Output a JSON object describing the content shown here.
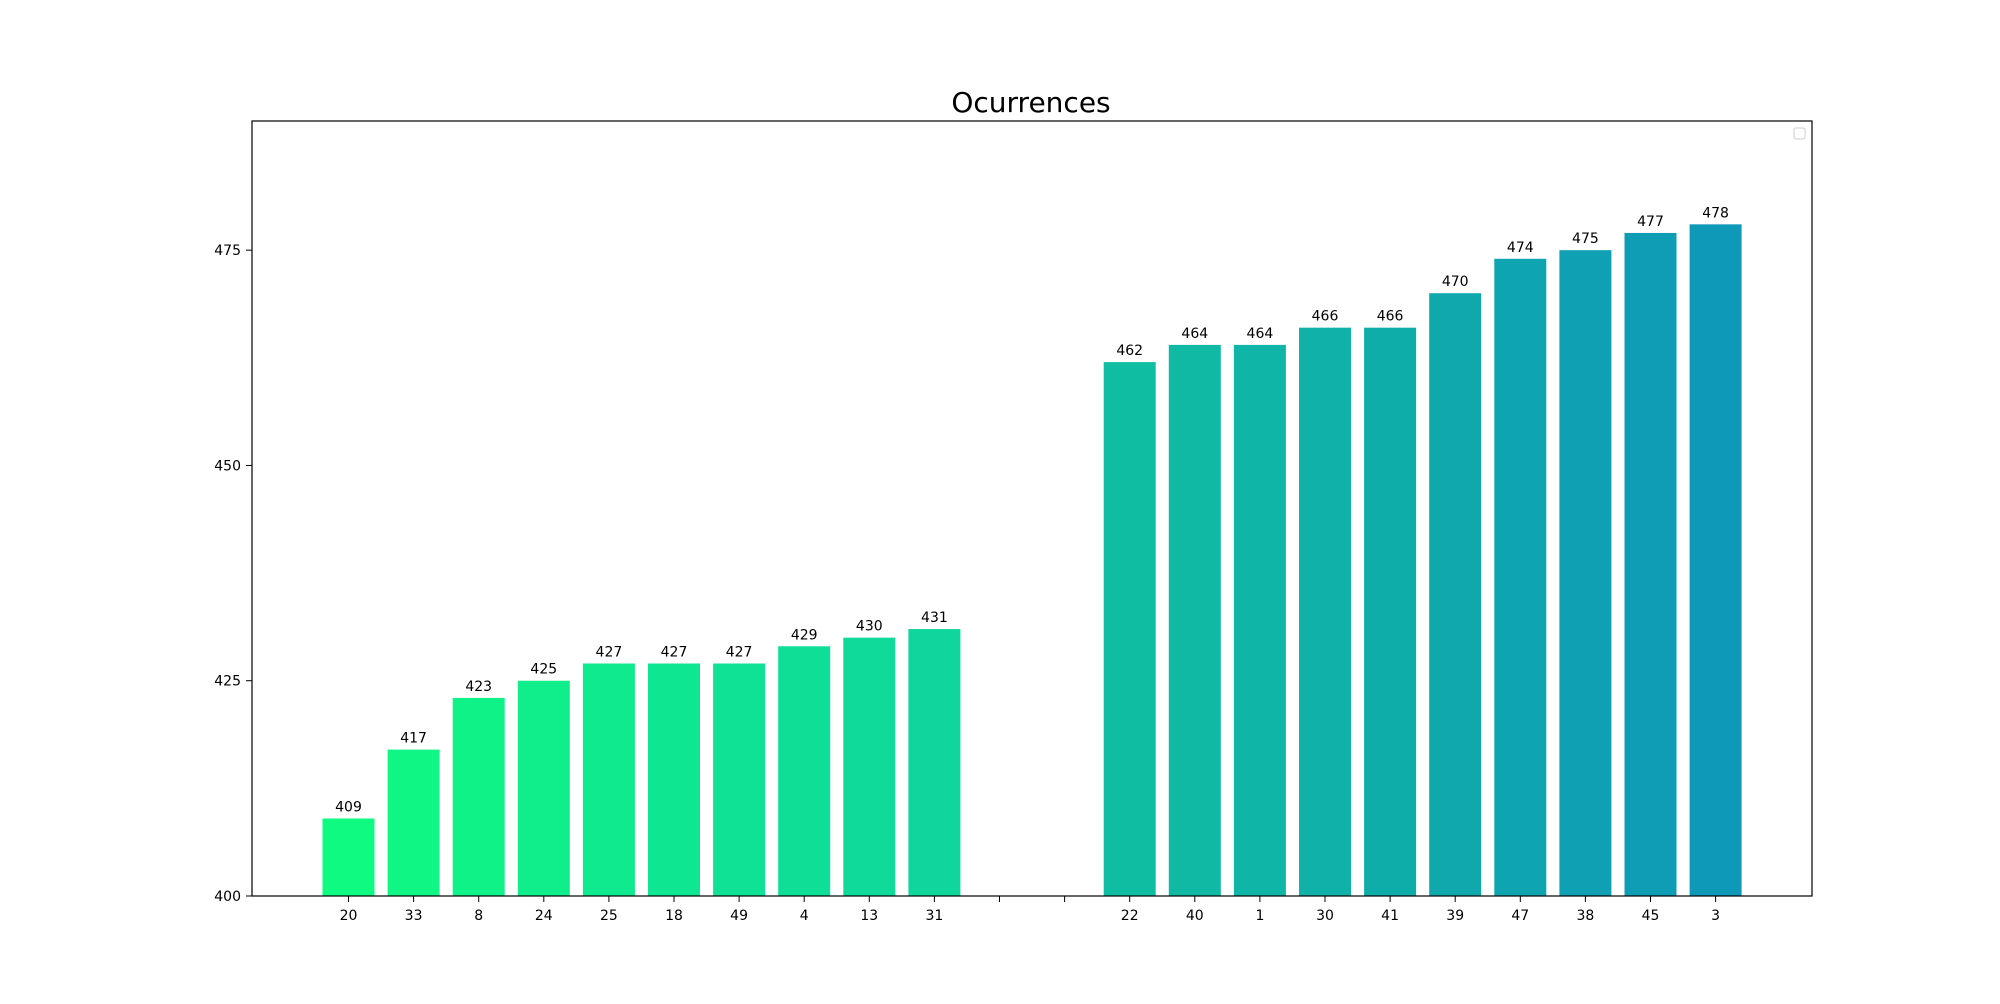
{
  "chart_data": {
    "type": "bar",
    "title": "Ocurrences",
    "xlabel": "",
    "ylabel": "",
    "ylim": [
      400,
      490
    ],
    "yticks": [
      400,
      425,
      450,
      475
    ],
    "grid": false,
    "legend": "top-right",
    "bars": [
      {
        "label": "20",
        "value": 409,
        "color": "#0ffa81"
      },
      {
        "label": "33",
        "value": 417,
        "color": "#0ff685"
      },
      {
        "label": "8",
        "value": 423,
        "color": "#0ff288"
      },
      {
        "label": "24",
        "value": 425,
        "color": "#0fee8b"
      },
      {
        "label": "25",
        "value": 427,
        "color": "#0fea8e"
      },
      {
        "label": "18",
        "value": 427,
        "color": "#0fe691"
      },
      {
        "label": "49",
        "value": 427,
        "color": "#0fe294"
      },
      {
        "label": "4",
        "value": 429,
        "color": "#0fde97"
      },
      {
        "label": "13",
        "value": 430,
        "color": "#0fda99"
      },
      {
        "label": "31",
        "value": 431,
        "color": "#0fd69a"
      },
      {
        "label": "",
        "value": null,
        "color": ""
      },
      {
        "label": "",
        "value": null,
        "color": ""
      },
      {
        "label": "22",
        "value": 462,
        "color": "#0fbda2"
      },
      {
        "label": "40",
        "value": 464,
        "color": "#0fb9a4"
      },
      {
        "label": "1",
        "value": 464,
        "color": "#0fb5a6"
      },
      {
        "label": "30",
        "value": 466,
        "color": "#0fb1a8"
      },
      {
        "label": "41",
        "value": 466,
        "color": "#0fadaa"
      },
      {
        "label": "39",
        "value": 470,
        "color": "#0fa9ad"
      },
      {
        "label": "47",
        "value": 474,
        "color": "#0fa5b0"
      },
      {
        "label": "38",
        "value": 475,
        "color": "#0fa1b3"
      },
      {
        "label": "45",
        "value": 477,
        "color": "#0f9db6"
      },
      {
        "label": "3",
        "value": 478,
        "color": "#0f99b9"
      }
    ]
  }
}
